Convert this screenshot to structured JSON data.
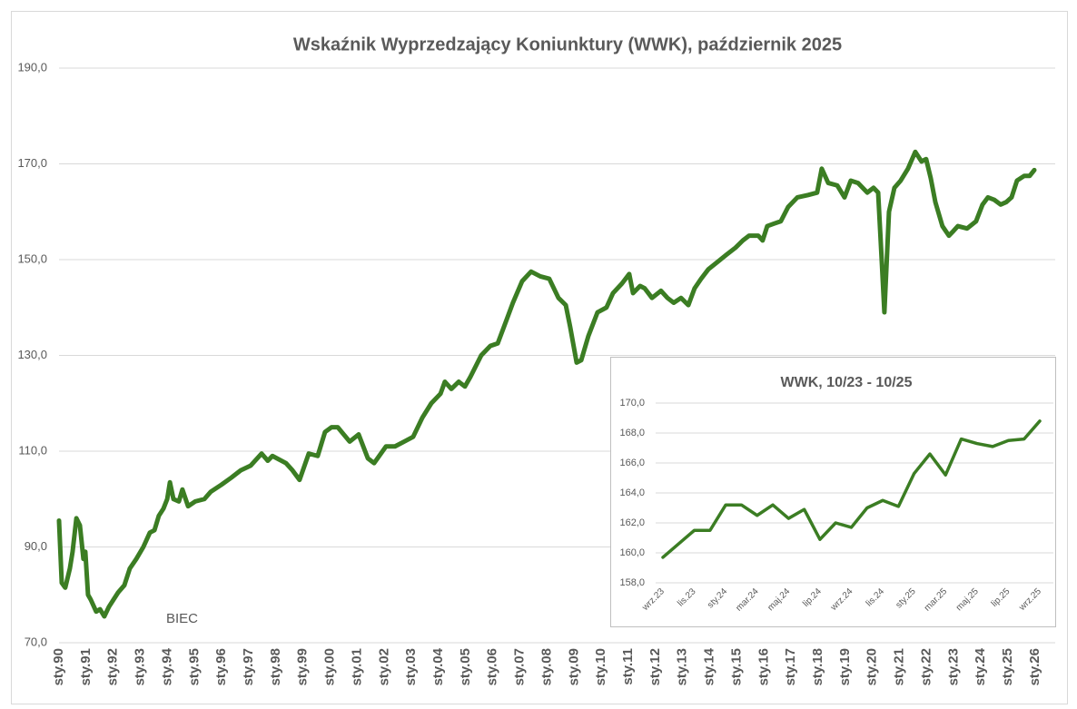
{
  "chart_data": [
    {
      "type": "line",
      "title": "Wskaźnik Wyprzedzający Koniunktury (WWK), październik 2025",
      "annotation": "BIEC",
      "color": "#3b7d23",
      "grid": true,
      "xlim": [
        1990,
        2026.74
      ],
      "ylim": [
        70,
        190
      ],
      "yticks": [
        {
          "value": 70,
          "label": "70,0"
        },
        {
          "value": 90,
          "label": "90,0"
        },
        {
          "value": 110,
          "label": "110,0"
        },
        {
          "value": 130,
          "label": "130,0"
        },
        {
          "value": 150,
          "label": "150,0"
        },
        {
          "value": 170,
          "label": "170,0"
        },
        {
          "value": 190,
          "label": "190,0"
        }
      ],
      "xticks": [
        {
          "value": 1990,
          "label": "sty.90"
        },
        {
          "value": 1991,
          "label": "sty.91"
        },
        {
          "value": 1992,
          "label": "sty.92"
        },
        {
          "value": 1993,
          "label": "sty.93"
        },
        {
          "value": 1994,
          "label": "sty.94"
        },
        {
          "value": 1995,
          "label": "sty.95"
        },
        {
          "value": 1996,
          "label": "sty.96"
        },
        {
          "value": 1997,
          "label": "sty.97"
        },
        {
          "value": 1998,
          "label": "sty.98"
        },
        {
          "value": 1999,
          "label": "sty.99"
        },
        {
          "value": 2000,
          "label": "sty.00"
        },
        {
          "value": 2001,
          "label": "sty.01"
        },
        {
          "value": 2002,
          "label": "sty.02"
        },
        {
          "value": 2003,
          "label": "sty.03"
        },
        {
          "value": 2004,
          "label": "sty.04"
        },
        {
          "value": 2005,
          "label": "sty.05"
        },
        {
          "value": 2006,
          "label": "sty.06"
        },
        {
          "value": 2007,
          "label": "sty.07"
        },
        {
          "value": 2008,
          "label": "sty.08"
        },
        {
          "value": 2009,
          "label": "sty.09"
        },
        {
          "value": 2010,
          "label": "sty.10"
        },
        {
          "value": 2011,
          "label": "sty.11"
        },
        {
          "value": 2012,
          "label": "sty.12"
        },
        {
          "value": 2013,
          "label": "sty.13"
        },
        {
          "value": 2014,
          "label": "sty.14"
        },
        {
          "value": 2015,
          "label": "sty.15"
        },
        {
          "value": 2016,
          "label": "sty.16"
        },
        {
          "value": 2017,
          "label": "sty.17"
        },
        {
          "value": 2018,
          "label": "sty.18"
        },
        {
          "value": 2019,
          "label": "sty.19"
        },
        {
          "value": 2020,
          "label": "sty.20"
        },
        {
          "value": 2021,
          "label": "sty.21"
        },
        {
          "value": 2022,
          "label": "sty.22"
        },
        {
          "value": 2023,
          "label": "sty.23"
        },
        {
          "value": 2024,
          "label": "sty.24"
        },
        {
          "value": 2025,
          "label": "sty.25"
        },
        {
          "value": 2026,
          "label": "sty.26"
        }
      ],
      "x": [
        1990.0,
        1990.1,
        1990.23,
        1990.4,
        1990.5,
        1990.64,
        1990.77,
        1990.9,
        1990.97,
        1991.07,
        1991.17,
        1991.37,
        1991.51,
        1991.67,
        1991.84,
        1992.01,
        1992.18,
        1992.41,
        1992.61,
        1992.85,
        1993.11,
        1993.35,
        1993.52,
        1993.68,
        1993.85,
        1993.99,
        1994.09,
        1994.22,
        1994.42,
        1994.55,
        1994.76,
        1995.02,
        1995.36,
        1995.59,
        1995.99,
        1996.36,
        1996.7,
        1997.07,
        1997.47,
        1997.7,
        1997.87,
        1998.37,
        1998.61,
        1998.87,
        1999.21,
        1999.54,
        1999.81,
        2000.05,
        2000.28,
        2000.72,
        2001.05,
        2001.39,
        2001.62,
        2002.06,
        2002.39,
        2002.73,
        2003.06,
        2003.4,
        2003.73,
        2004.07,
        2004.23,
        2004.47,
        2004.74,
        2004.97,
        2005.17,
        2005.57,
        2005.91,
        2006.18,
        2006.51,
        2006.74,
        2007.08,
        2007.41,
        2007.75,
        2008.08,
        2008.42,
        2008.69,
        2008.85,
        2009.09,
        2009.26,
        2009.52,
        2009.86,
        2010.19,
        2010.43,
        2010.76,
        2011.03,
        2011.17,
        2011.43,
        2011.6,
        2011.87,
        2012.2,
        2012.44,
        2012.67,
        2012.94,
        2013.21,
        2013.44,
        2013.68,
        2013.95,
        2014.28,
        2014.61,
        2014.95,
        2015.22,
        2015.45,
        2015.79,
        2015.95,
        2016.12,
        2016.36,
        2016.62,
        2016.89,
        2017.23,
        2017.63,
        2017.96,
        2018.13,
        2018.37,
        2018.7,
        2018.97,
        2019.2,
        2019.47,
        2019.81,
        2020.04,
        2020.21,
        2020.34,
        2020.44,
        2020.61,
        2020.81,
        2021.04,
        2021.31,
        2021.58,
        2021.81,
        2021.98,
        2022.15,
        2022.32,
        2022.58,
        2022.82,
        2022.99,
        2023.15,
        2023.49,
        2023.82,
        2024.06,
        2024.26,
        2024.49,
        2024.73,
        2024.93,
        2025.13,
        2025.33,
        2025.6,
        2025.8,
        2025.97
      ],
      "values": [
        95.5,
        82.5,
        81.5,
        85.5,
        89,
        96,
        94.5,
        87.5,
        89,
        80,
        79,
        76.5,
        77,
        75.5,
        77.5,
        79,
        80.5,
        82,
        85.5,
        87.5,
        90,
        93,
        93.5,
        96.5,
        98,
        100,
        103.5,
        100,
        99.5,
        102,
        98.5,
        99.5,
        100,
        101.5,
        103,
        104.5,
        106,
        107,
        109.5,
        108,
        109,
        107.5,
        106,
        104,
        109.5,
        109,
        114,
        115,
        115,
        112,
        113.5,
        108.5,
        107.5,
        111,
        111,
        112,
        113,
        117,
        120,
        122,
        124.5,
        123,
        124.5,
        123.5,
        125.5,
        130,
        132,
        132.5,
        137.5,
        141,
        145.5,
        147.5,
        146.5,
        146,
        142,
        140.5,
        136,
        128.5,
        129,
        134,
        139,
        140,
        143,
        145,
        147,
        143,
        144.5,
        144,
        142,
        143.5,
        142,
        141,
        142,
        140.5,
        144,
        146,
        148,
        149.5,
        151,
        152.5,
        154,
        155,
        155,
        154,
        157,
        157.5,
        158,
        161,
        163,
        163.5,
        164,
        169,
        166,
        165.5,
        163,
        166.5,
        166,
        164,
        165,
        164,
        150,
        139,
        160,
        165,
        166.5,
        169,
        172.5,
        170.5,
        171,
        167,
        162,
        157,
        155,
        156,
        157,
        156.5,
        158,
        161.5,
        163,
        162.5,
        161.5,
        162,
        163,
        166.5,
        167.5,
        167.5,
        168.7
      ]
    },
    {
      "type": "line",
      "title": "WWK, 10/23 - 10/25",
      "color": "#3b7d23",
      "grid": true,
      "ylim": [
        158,
        170
      ],
      "yticks": [
        {
          "value": 158,
          "label": "158,0"
        },
        {
          "value": 160,
          "label": "160,0"
        },
        {
          "value": 162,
          "label": "162,0"
        },
        {
          "value": 164,
          "label": "164,0"
        },
        {
          "value": 166,
          "label": "166,0"
        },
        {
          "value": 168,
          "label": "168,0"
        },
        {
          "value": 170,
          "label": "170,0"
        }
      ],
      "categories": [
        "wrz.23",
        null,
        "lis.23",
        null,
        "sty.24",
        null,
        "mar.24",
        null,
        "maj.24",
        null,
        "lip.24",
        null,
        "wrz.24",
        null,
        "lis.24",
        null,
        "sty.25",
        null,
        "mar.25",
        null,
        "maj.25",
        null,
        "lip.25",
        null,
        "wrz.25"
      ],
      "values": [
        159.7,
        160.6,
        161.5,
        161.5,
        163.2,
        163.2,
        162.5,
        163.2,
        162.3,
        162.9,
        160.9,
        162.0,
        161.7,
        163.0,
        163.5,
        163.1,
        165.3,
        166.6,
        165.2,
        167.6,
        167.3,
        167.1,
        167.5,
        167.6,
        168.8
      ]
    }
  ]
}
